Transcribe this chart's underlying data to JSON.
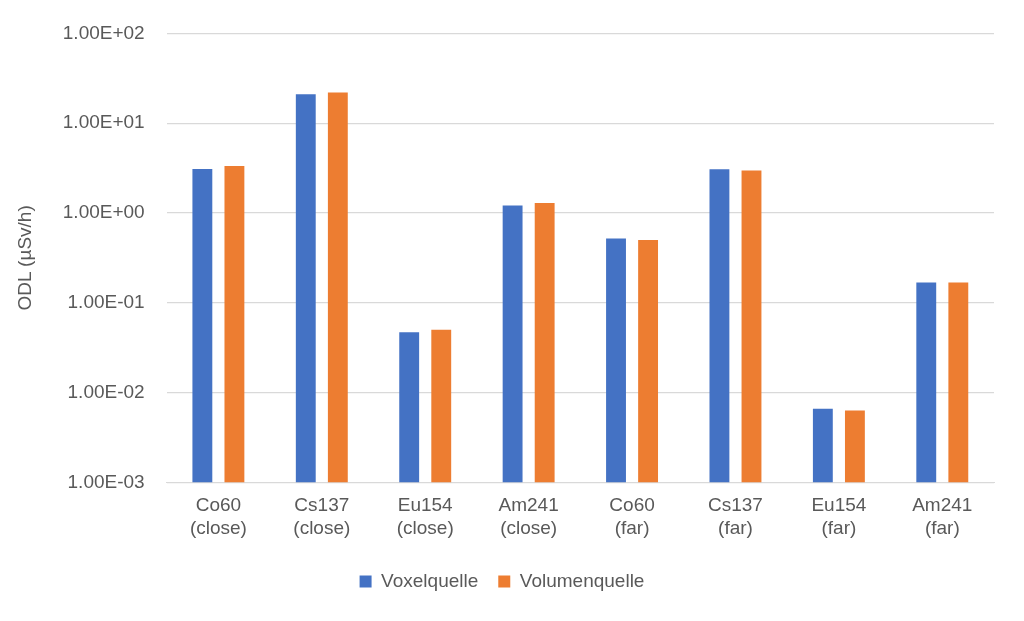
{
  "chart_data": {
    "type": "bar",
    "ylabel": "ODL (µSv/h)",
    "categories": [
      "Co60 (close)",
      "Cs137 (close)",
      "Eu154 (close)",
      "Am241 (close)",
      "Co60 (far)",
      "Cs137 (far)",
      "Eu154 (far)",
      "Am241 (far)"
    ],
    "series": [
      {
        "name": "Voxelquelle",
        "color": "#4472c4",
        "values": [
          3.1,
          21,
          0.047,
          1.21,
          0.52,
          3.08,
          0.0066,
          0.168
        ]
      },
      {
        "name": "Volumenquelle",
        "color": "#ed7d31",
        "values": [
          3.34,
          22,
          0.05,
          1.29,
          0.5,
          2.97,
          0.0063,
          0.168
        ]
      }
    ],
    "log": "y",
    "ylim": [
      0.001,
      100
    ],
    "yticks": [
      {
        "value": 0.001,
        "label": "1.00E-03"
      },
      {
        "value": 0.01,
        "label": "1.00E-02"
      },
      {
        "value": 0.1,
        "label": "1.00E-01"
      },
      {
        "value": 1,
        "label": "1.00E+00"
      },
      {
        "value": 10,
        "label": "1.00E+01"
      },
      {
        "value": 100,
        "label": "1.00E+02"
      }
    ],
    "grid": "y",
    "legend": "bottom"
  }
}
